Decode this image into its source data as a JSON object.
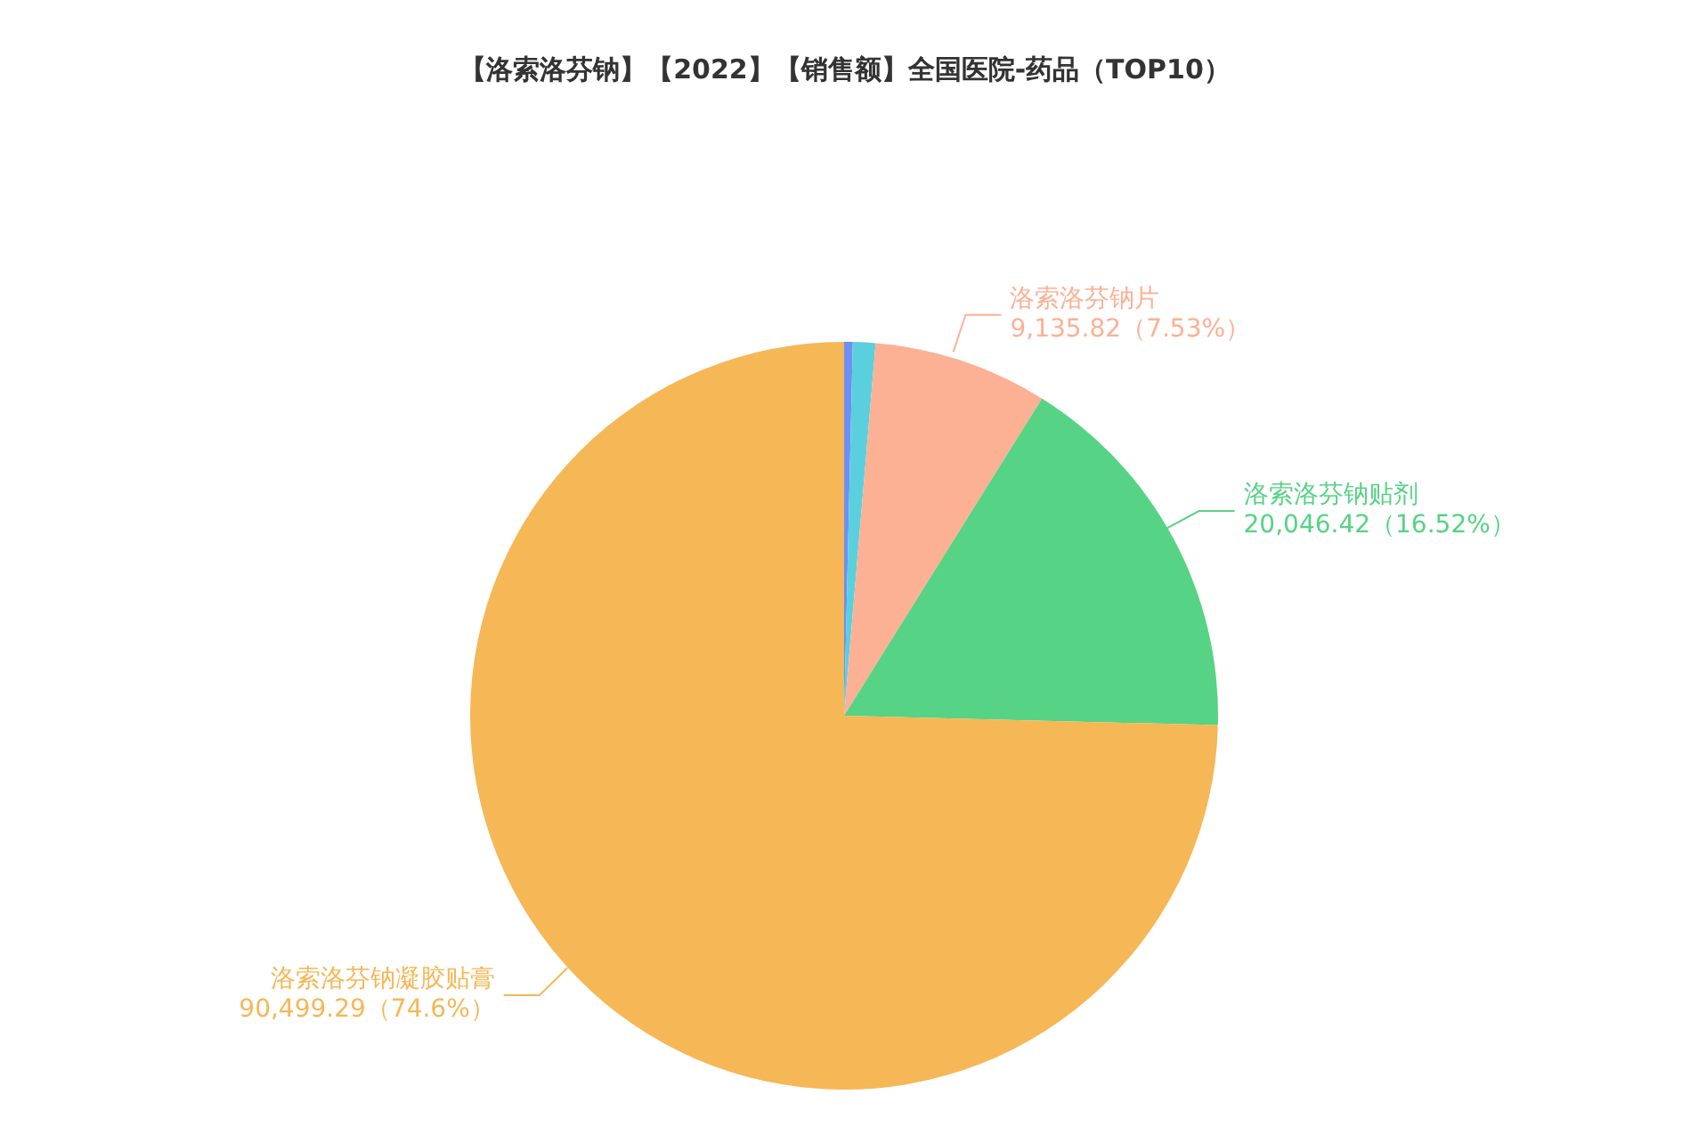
{
  "chart_data": {
    "type": "pie",
    "title": "【洛索洛芬钠】【2022】【销售额】全国医院-药品（TOP10）",
    "categories": [
      null,
      null,
      "洛索洛芬钠片",
      "洛索洛芬钠贴剂",
      "洛索洛芬钠凝胶贴膏"
    ],
    "values": [
      450,
      1182,
      9135.82,
      20046.42,
      90499.29
    ],
    "value_labels": [
      null,
      null,
      "9,135.82（7.53%）",
      "20,046.42（16.52%）",
      "90,499.29（74.6%）"
    ],
    "colors": [
      "#6f8ff2",
      "#5ad0df",
      "#fcb094",
      "#56d384",
      "#f6b756"
    ]
  }
}
